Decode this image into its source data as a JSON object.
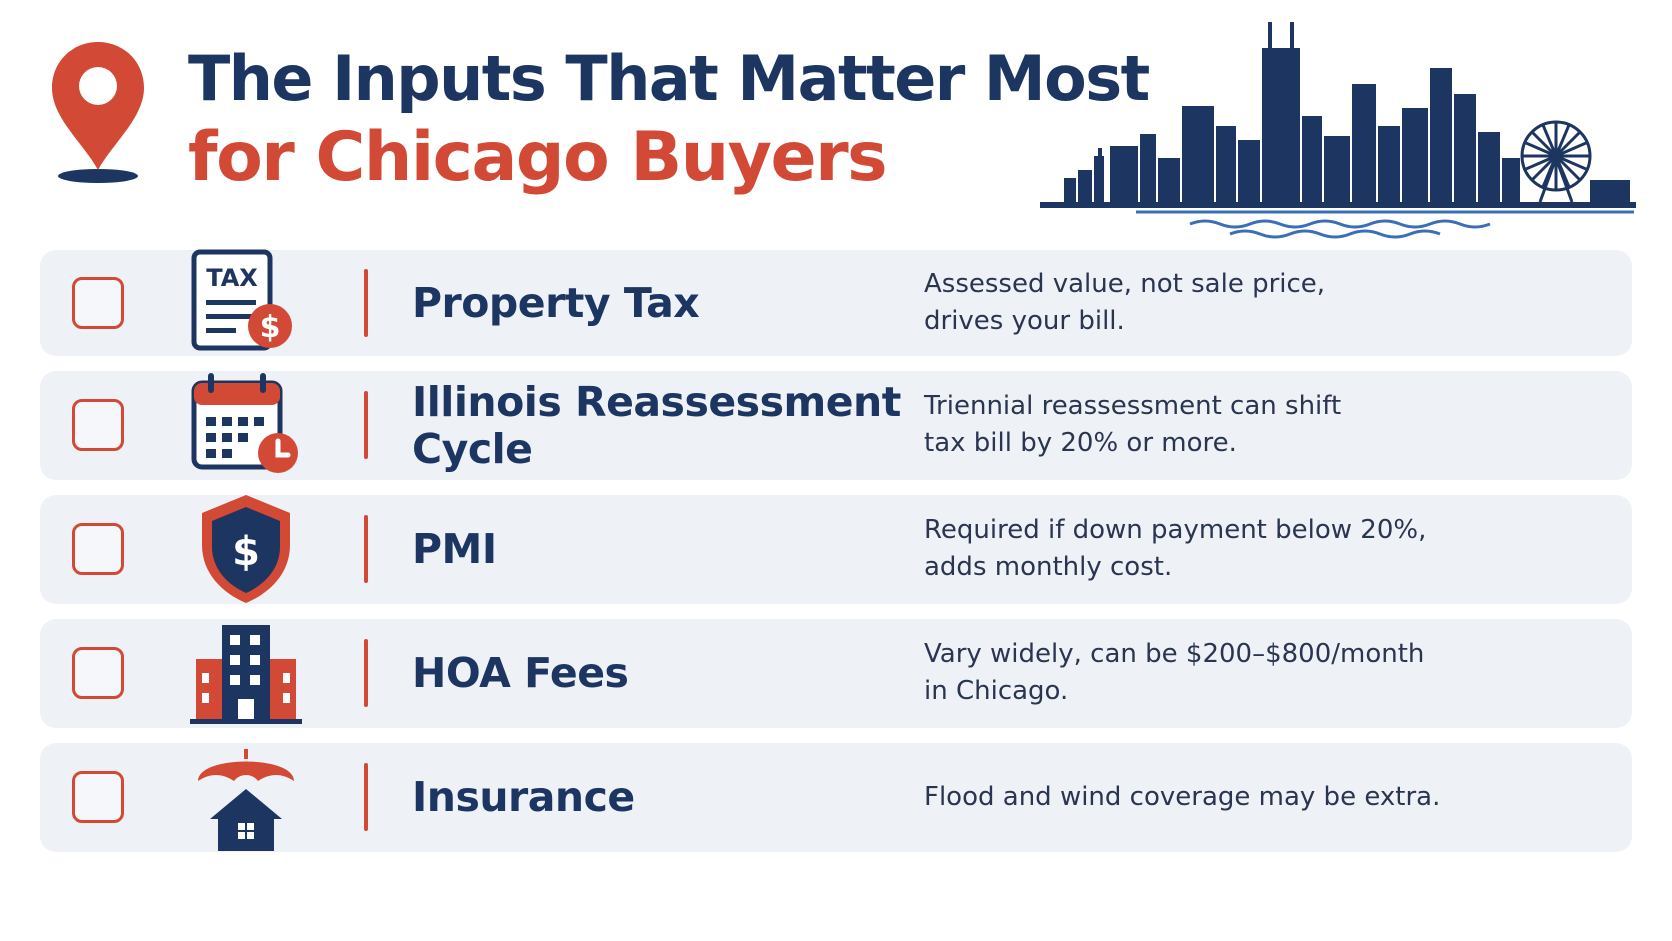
{
  "header": {
    "title_line1": "The Inputs That Matter Most",
    "title_line2": "for Chicago Buyers"
  },
  "colors": {
    "navy": "#1d3561",
    "red": "#d24a35",
    "card_background": "#eef1f6",
    "text": "#2a3550"
  },
  "checklist": [
    {
      "icon": "tax-document-icon",
      "icon_text": "TAX",
      "label_lines": [
        "Property Tax"
      ],
      "description_lines": [
        "Assessed value, not sale price,",
        "drives your bill."
      ],
      "checked": false
    },
    {
      "icon": "calendar-clock-icon",
      "label_lines": [
        "Illinois Reassessment",
        "Cycle"
      ],
      "description_lines": [
        "Triennial reassessment can shift",
        "tax bill by 20% or more."
      ],
      "checked": false
    },
    {
      "icon": "shield-dollar-icon",
      "label_lines": [
        "PMI"
      ],
      "description_lines": [
        "Required if down payment below 20%,",
        "adds monthly cost."
      ],
      "checked": false
    },
    {
      "icon": "building-icon",
      "label_lines": [
        "HOA Fees"
      ],
      "description_lines": [
        "Vary widely, can be $200–$800/month",
        "in Chicago."
      ],
      "checked": false
    },
    {
      "icon": "umbrella-house-icon",
      "label_lines": [
        "Insurance"
      ],
      "description_lines": [
        "Flood and wind coverage may be extra."
      ],
      "checked": false
    }
  ]
}
